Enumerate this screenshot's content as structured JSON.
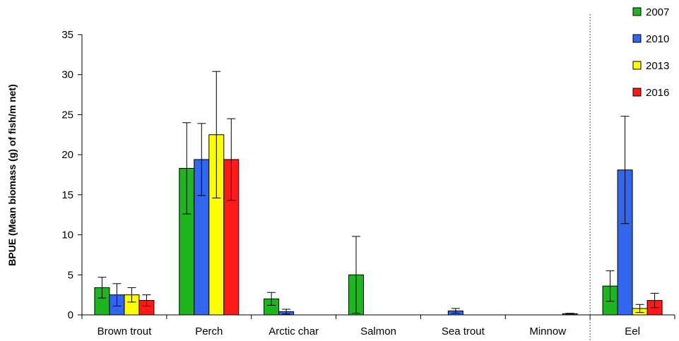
{
  "chart_data": {
    "type": "bar",
    "title": "",
    "xlabel": "",
    "ylabel": "BPUE (Mean biomass (g) of fish/m net)",
    "ylim": [
      0,
      35
    ],
    "yticks": [
      0,
      5,
      10,
      15,
      20,
      25,
      30,
      35
    ],
    "categories": [
      "Brown trout",
      "Perch",
      "Arctic char",
      "Salmon",
      "Sea trout",
      "Minnow",
      "Eel"
    ],
    "series": [
      {
        "name": "2007",
        "color": "#1fb51f",
        "values": [
          3.4,
          18.3,
          2.0,
          5.0,
          0,
          0,
          3.6
        ],
        "errors": [
          1.3,
          5.7,
          0.8,
          4.8,
          0,
          0,
          1.9
        ]
      },
      {
        "name": "2010",
        "color": "#3366ee",
        "values": [
          2.5,
          19.4,
          0.4,
          0,
          0.5,
          0,
          18.1
        ],
        "errors": [
          1.4,
          4.5,
          0.3,
          0,
          0.3,
          0,
          6.7
        ]
      },
      {
        "name": "2013",
        "color": "#ffff00",
        "values": [
          2.5,
          22.5,
          0,
          0,
          0,
          0,
          0.8
        ],
        "errors": [
          0.9,
          7.9,
          0,
          0,
          0,
          0,
          0.5
        ]
      },
      {
        "name": "2016",
        "color": "#ff1a1a",
        "values": [
          1.8,
          19.4,
          0,
          0,
          0,
          0.15,
          1.8
        ],
        "errors": [
          0.7,
          5.1,
          0,
          0,
          0,
          0.05,
          0.9
        ]
      }
    ],
    "separator_before_category": "Eel",
    "legend": "right",
    "grid": false
  }
}
